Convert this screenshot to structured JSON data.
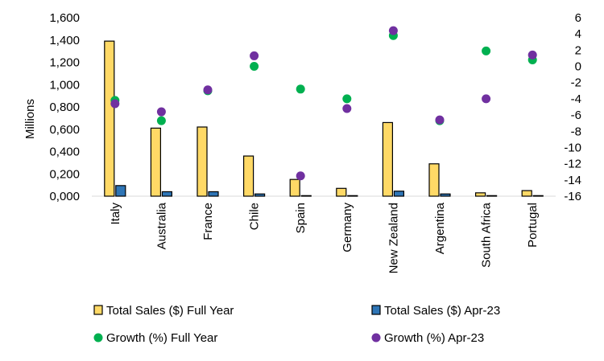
{
  "chart_data": {
    "type": "bar",
    "ylabel": "Millions",
    "ylim": [
      0,
      1.6
    ],
    "y_ticks": [
      "0,000",
      "0,200",
      "0,400",
      "0,600",
      "0,800",
      "1,000",
      "1,200",
      "1,400",
      "1,600"
    ],
    "y2lim": [
      -16,
      6
    ],
    "y2_ticks": [
      "6",
      "4",
      "2",
      "0",
      "-2",
      "-4",
      "-6",
      "-8",
      "-10",
      "-12",
      "-14",
      "-16"
    ],
    "grid": false,
    "legend_position": "bottom",
    "categories": [
      "Italy",
      "Australia",
      "France",
      "Chile",
      "Spain",
      "Germany",
      "New Zealand",
      "Argentina",
      "South Africa",
      "Portugal"
    ],
    "series": [
      {
        "name": "Total Sales ($) Full Year",
        "type": "bar",
        "axis": "left",
        "color": "#FFD966",
        "values": [
          1.39,
          0.61,
          0.62,
          0.36,
          0.15,
          0.07,
          0.66,
          0.29,
          0.03,
          0.05
        ]
      },
      {
        "name": "Total Sales ($) Apr-23",
        "type": "bar",
        "axis": "left",
        "color": "#2E75B6",
        "values": [
          0.095,
          0.04,
          0.04,
          0.02,
          0.005,
          0.005,
          0.045,
          0.02,
          0.005,
          0.005
        ]
      },
      {
        "name": "Growth (%) Full Year",
        "type": "scatter",
        "axis": "right",
        "color": "#00B050",
        "values": [
          -4.2,
          -6.7,
          -3.0,
          0.0,
          -2.8,
          -4.0,
          3.8,
          -6.7,
          1.9,
          0.8
        ]
      },
      {
        "name": "Growth (%) Apr-23",
        "type": "scatter",
        "axis": "right",
        "color": "#7030A0",
        "values": [
          -4.6,
          -5.6,
          -2.9,
          1.3,
          -13.5,
          -5.2,
          4.4,
          -6.6,
          -4.0,
          1.4
        ]
      }
    ]
  }
}
